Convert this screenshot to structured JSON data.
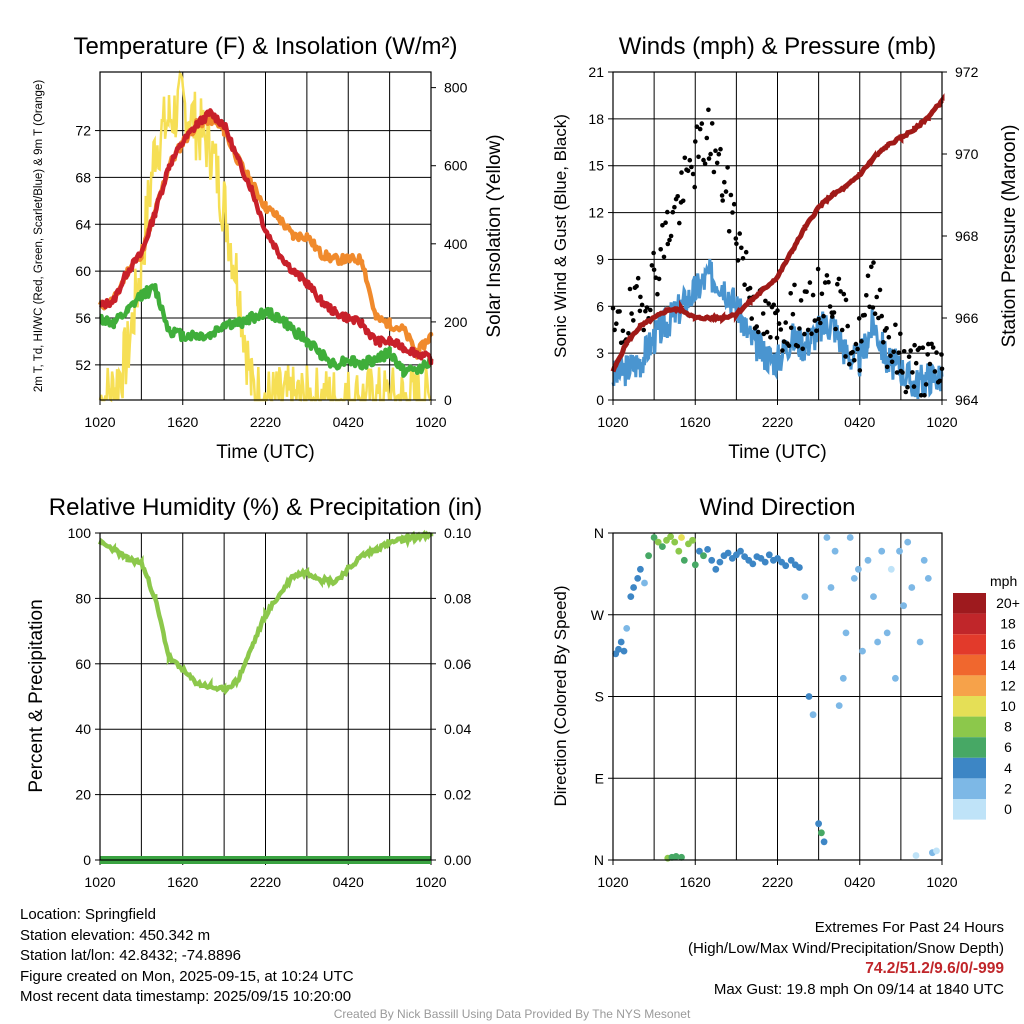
{
  "colors": {
    "temperature": "#c8202a",
    "dewpoint": "#3fae3a",
    "temp_9m": "#f08a2c",
    "insolation": "#f6df55",
    "wind_speed": "#4a95d0",
    "wind_gust": "#000000",
    "pressure": "#a01a18",
    "humidity": "#8cc84b",
    "precipitation": "#3aa341"
  },
  "chart_data": [
    {
      "type": "line",
      "title": "Temperature (F) & Insolation (W/m²)",
      "xlabel": "Time (UTC)",
      "ylabel": "2m T, Td, HI/WC (Red, Green, Scarlet/Blue) & 9m T (Orange)",
      "ylabel2": "Solar Insolation (Yellow)",
      "x_ticks": [
        "1020",
        "1620",
        "2220",
        "0420",
        "1020"
      ],
      "ylim": [
        49,
        77
      ],
      "y_ticks": [
        52,
        56,
        60,
        64,
        68,
        72
      ],
      "y2lim": [
        0,
        840
      ],
      "y2_ticks": [
        0,
        200,
        400,
        600,
        800
      ],
      "x_hours": [
        0,
        1,
        2,
        3,
        4,
        5,
        6,
        7,
        8,
        9,
        10,
        11,
        12,
        13,
        14,
        15,
        16,
        17,
        18,
        19,
        20,
        21,
        22,
        23,
        24
      ],
      "series": [
        {
          "name": "2m T",
          "axis": "left",
          "values": [
            57.0,
            57.5,
            60.0,
            61.5,
            65.0,
            69.0,
            71.0,
            72.5,
            73.5,
            72.5,
            69.5,
            67.0,
            63.5,
            61.5,
            60.0,
            59.0,
            57.5,
            56.5,
            56.0,
            55.5,
            54.0,
            54.0,
            53.5,
            53.0,
            52.5
          ]
        },
        {
          "name": "2m Td",
          "axis": "left",
          "values": [
            56.0,
            55.5,
            56.5,
            58.0,
            58.5,
            55.0,
            54.5,
            54.5,
            54.5,
            55.5,
            55.5,
            56.0,
            56.5,
            56.0,
            55.0,
            54.0,
            53.0,
            52.0,
            52.5,
            52.0,
            52.5,
            53.0,
            51.5,
            51.5,
            52.5
          ]
        },
        {
          "name": "9m T",
          "axis": "left",
          "values": [
            57.0,
            57.5,
            60.0,
            61.5,
            65.0,
            69.0,
            71.0,
            72.5,
            73.0,
            72.0,
            69.5,
            67.5,
            65.5,
            64.5,
            63.0,
            63.0,
            61.5,
            61.0,
            61.0,
            61.0,
            56.0,
            55.5,
            55.0,
            53.0,
            54.5
          ]
        },
        {
          "name": "Solar Insolation",
          "axis": "right",
          "values": [
            0,
            25,
            120,
            350,
            650,
            720,
            760,
            700,
            650,
            500,
            300,
            30,
            0,
            0,
            0,
            0,
            0,
            0,
            0,
            0,
            0,
            0,
            0,
            0,
            0
          ]
        }
      ]
    },
    {
      "type": "line",
      "title": "Winds (mph) & Pressure (mb)",
      "xlabel": "Time (UTC)",
      "ylabel": "Sonic Wind & Gust (Blue, Black)",
      "ylabel2": "Station Pressure (Maroon)",
      "x_ticks": [
        "1020",
        "1620",
        "2220",
        "0420",
        "1020"
      ],
      "ylim": [
        0,
        21
      ],
      "y_ticks": [
        0,
        3,
        6,
        9,
        12,
        15,
        18,
        21
      ],
      "y2lim": [
        964,
        972
      ],
      "y2_ticks": [
        964,
        966,
        968,
        970,
        972
      ],
      "x_hours": [
        0,
        1,
        2,
        3,
        4,
        5,
        6,
        7,
        8,
        9,
        10,
        11,
        12,
        13,
        14,
        15,
        16,
        17,
        18,
        19,
        20,
        21,
        22,
        23,
        24
      ],
      "series": [
        {
          "name": "Sonic Wind",
          "axis": "left",
          "values": [
            1.5,
            2.0,
            2.5,
            4.0,
            5.0,
            6.0,
            7.0,
            8.0,
            7.5,
            6.0,
            4.0,
            3.0,
            2.5,
            4.0,
            3.5,
            4.5,
            5.0,
            3.0,
            2.5,
            5.0,
            2.5,
            2.0,
            1.0,
            1.5,
            1.5
          ]
        },
        {
          "name": "Gust",
          "axis": "left",
          "values": [
            4.0,
            5.0,
            6.0,
            8.0,
            11.0,
            13.0,
            15.5,
            17.0,
            14.0,
            11.0,
            7.0,
            5.0,
            4.5,
            5.5,
            5.0,
            6.5,
            7.0,
            4.5,
            3.5,
            8.0,
            4.0,
            2.5,
            2.0,
            2.0,
            2.0
          ]
        },
        {
          "name": "Station Pressure",
          "axis": "right",
          "values": [
            964.7,
            965.4,
            965.8,
            966.0,
            966.2,
            966.2,
            966.0,
            966.0,
            966.0,
            966.1,
            966.4,
            966.7,
            967.0,
            967.6,
            968.2,
            968.7,
            969.0,
            969.2,
            969.5,
            969.9,
            970.2,
            970.4,
            970.6,
            970.9,
            971.3
          ]
        }
      ]
    },
    {
      "type": "line",
      "title": "Relative Humidity (%) & Precipitation (in)",
      "xlabel": "",
      "ylabel": "Percent & Precipitation",
      "x_ticks": [
        "1020",
        "1620",
        "2220",
        "0420",
        "1020"
      ],
      "ylim": [
        0,
        100
      ],
      "y_ticks": [
        0,
        20,
        40,
        60,
        80,
        100
      ],
      "y2lim": [
        0,
        0.1
      ],
      "y2_ticks": [
        "0.00",
        "0.02",
        "0.04",
        "0.06",
        "0.08",
        "0.10"
      ],
      "x_hours": [
        0,
        1,
        2,
        3,
        4,
        5,
        6,
        7,
        8,
        9,
        10,
        11,
        12,
        13,
        14,
        15,
        16,
        17,
        18,
        19,
        20,
        21,
        22,
        23,
        24
      ],
      "series": [
        {
          "name": "Relative Humidity",
          "axis": "left",
          "values": [
            97,
            95,
            92,
            91,
            80,
            62,
            58,
            54,
            53,
            52,
            55,
            65,
            75,
            81,
            87,
            88,
            86,
            85,
            89,
            93,
            95,
            97,
            98,
            99,
            99
          ]
        },
        {
          "name": "Precipitation",
          "axis": "right",
          "values": [
            0,
            0,
            0,
            0,
            0,
            0,
            0,
            0,
            0,
            0,
            0,
            0,
            0,
            0,
            0,
            0,
            0,
            0,
            0,
            0,
            0,
            0,
            0,
            0,
            0
          ]
        }
      ]
    },
    {
      "type": "scatter",
      "title": "Wind Direction",
      "ylabel": "Direction (Colored By Speed)",
      "x_ticks": [
        "1020",
        "1620",
        "2220",
        "0420",
        "1020"
      ],
      "y_ticks": [
        "N",
        "E",
        "S",
        "W",
        "N"
      ],
      "ylim": [
        0,
        360
      ],
      "legend_title": "mph",
      "legend_labels": [
        "20+",
        "18",
        "16",
        "14",
        "12",
        "10",
        "8",
        "6",
        "4",
        "2",
        "0"
      ],
      "legend_colors": [
        "#9e1a1e",
        "#c0262a",
        "#e23a2b",
        "#f0672e",
        "#f6a24a",
        "#e5df56",
        "#8cc84b",
        "#47a865",
        "#3d86c5",
        "#7db8e6",
        "#bfe3f8"
      ],
      "points": [
        [
          0.2,
          227,
          3
        ],
        [
          0.4,
          232,
          3
        ],
        [
          0.6,
          240,
          3
        ],
        [
          0.8,
          230,
          3
        ],
        [
          1.0,
          255,
          2
        ],
        [
          1.3,
          290,
          3
        ],
        [
          1.5,
          300,
          3
        ],
        [
          1.8,
          310,
          4
        ],
        [
          2.0,
          320,
          3
        ],
        [
          2.3,
          305,
          2
        ],
        [
          2.6,
          335,
          5
        ],
        [
          3.0,
          355,
          6
        ],
        [
          3.3,
          350,
          7
        ],
        [
          3.6,
          345,
          6
        ],
        [
          3.9,
          352,
          8
        ],
        [
          4.2,
          356,
          7
        ],
        [
          4.5,
          350,
          8
        ],
        [
          4.8,
          340,
          7
        ],
        [
          5.0,
          355,
          9
        ],
        [
          5.2,
          330,
          6
        ],
        [
          5.5,
          348,
          7
        ],
        [
          5.8,
          352,
          8
        ],
        [
          6.0,
          325,
          5
        ],
        [
          6.3,
          340,
          4
        ],
        [
          6.6,
          335,
          5
        ],
        [
          6.9,
          342,
          4
        ],
        [
          7.2,
          330,
          3
        ],
        [
          7.5,
          320,
          4
        ],
        [
          7.8,
          328,
          3
        ],
        [
          8.1,
          335,
          4
        ],
        [
          8.4,
          338,
          4
        ],
        [
          8.7,
          332,
          4
        ],
        [
          9.0,
          336,
          4
        ],
        [
          9.3,
          340,
          3
        ],
        [
          9.6,
          334,
          4
        ],
        [
          9.9,
          330,
          4
        ],
        [
          10.2,
          326,
          3
        ],
        [
          10.5,
          334,
          4
        ],
        [
          10.8,
          332,
          3
        ],
        [
          11.1,
          328,
          3
        ],
        [
          11.4,
          336,
          4
        ],
        [
          11.7,
          330,
          3
        ],
        [
          12.0,
          332,
          4
        ],
        [
          12.3,
          328,
          3
        ],
        [
          12.6,
          324,
          4
        ],
        [
          13.0,
          330,
          3
        ],
        [
          13.3,
          325,
          4
        ],
        [
          13.6,
          322,
          3
        ],
        [
          14.0,
          290,
          2
        ],
        [
          14.3,
          180,
          3
        ],
        [
          14.6,
          160,
          2
        ],
        [
          15.0,
          40,
          4
        ],
        [
          15.2,
          30,
          5
        ],
        [
          15.4,
          20,
          4
        ],
        [
          15.6,
          355,
          2
        ],
        [
          15.9,
          300,
          1
        ],
        [
          16.2,
          340,
          2
        ],
        [
          16.5,
          170,
          1
        ],
        [
          16.8,
          200,
          1
        ],
        [
          17.0,
          250,
          1
        ],
        [
          17.3,
          355,
          2
        ],
        [
          17.6,
          310,
          1
        ],
        [
          17.9,
          320,
          1
        ],
        [
          18.2,
          230,
          1
        ],
        [
          18.6,
          330,
          1
        ],
        [
          19.0,
          290,
          2
        ],
        [
          19.3,
          240,
          1
        ],
        [
          19.6,
          340,
          1
        ],
        [
          20.0,
          250,
          1
        ],
        [
          20.3,
          320,
          0
        ],
        [
          20.6,
          200,
          1
        ],
        [
          20.9,
          340,
          1
        ],
        [
          21.2,
          280,
          1
        ],
        [
          21.5,
          350,
          1
        ],
        [
          21.8,
          300,
          1
        ],
        [
          22.1,
          5,
          0
        ],
        [
          22.4,
          240,
          1
        ],
        [
          22.7,
          330,
          1
        ],
        [
          23.0,
          310,
          1
        ],
        [
          23.3,
          8,
          1
        ],
        [
          23.6,
          10,
          0
        ],
        [
          4.0,
          2,
          7
        ],
        [
          4.3,
          3,
          6
        ],
        [
          4.6,
          4,
          5
        ],
        [
          5.0,
          3,
          6
        ]
      ]
    }
  ],
  "info_left": [
    "Location: Springfield",
    "Station elevation: 450.342 m",
    "Station lat/lon: 42.8432; -74.8896",
    "Figure created on Mon, 2025-09-15, at 10:24 UTC",
    "Most recent data timestamp: 2025/09/15 10:20:00"
  ],
  "extremes": {
    "title": "Extremes For Past 24 Hours",
    "subtitle": "(High/Low/Max Wind/Precipitation/Snow Depth)",
    "values": "74.2/51.2/9.6/0/-999",
    "max_gust": "Max Gust: 19.8 mph On 09/14 at 1840 UTC"
  },
  "credit": "Created By Nick Bassill Using Data Provided By The NYS Mesonet"
}
